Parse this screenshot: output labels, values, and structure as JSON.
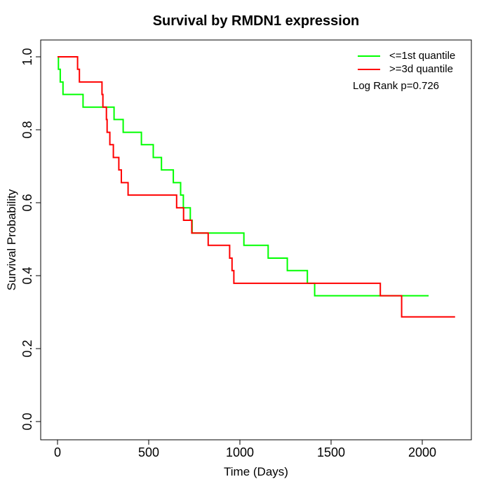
{
  "window": {
    "background": "#ffffff",
    "text_color": "#000000"
  },
  "chart_data": {
    "type": "line",
    "subtype": "kaplan-meier-step",
    "title": "Survival by RMDN1 expression",
    "xlabel": "Time (Days)",
    "ylabel": "Survival Probability",
    "xlim": [
      0,
      2200
    ],
    "ylim": [
      0.0,
      1.0
    ],
    "xticks": [
      0,
      500,
      1000,
      1500,
      2000
    ],
    "yticks": [
      "0.0",
      "0.2",
      "0.4",
      "0.6",
      "0.8",
      "1.0"
    ],
    "grid": false,
    "axis_color": "#000000",
    "legend_position": "top-right-inside",
    "annotation": "Log Rank p=0.726",
    "series": [
      {
        "name": "<=1st quantile",
        "color": "#00ff00",
        "start": [
          0,
          1.0
        ],
        "steps": [
          [
            5,
            0.966
          ],
          [
            15,
            0.931
          ],
          [
            30,
            0.897
          ],
          [
            140,
            0.862
          ],
          [
            310,
            0.828
          ],
          [
            360,
            0.793
          ],
          [
            460,
            0.759
          ],
          [
            525,
            0.724
          ],
          [
            570,
            0.69
          ],
          [
            635,
            0.655
          ],
          [
            675,
            0.621
          ],
          [
            690,
            0.586
          ],
          [
            728,
            0.552
          ],
          [
            738,
            0.517
          ],
          [
            1022,
            0.483
          ],
          [
            1155,
            0.448
          ],
          [
            1260,
            0.414
          ],
          [
            1370,
            0.379
          ],
          [
            1410,
            0.345
          ]
        ],
        "end_time": 2035
      },
      {
        "name": ">=3d quantile",
        "color": "#ff0000",
        "start": [
          0,
          1.0
        ],
        "steps": [
          [
            110,
            0.966
          ],
          [
            120,
            0.931
          ],
          [
            244,
            0.897
          ],
          [
            249,
            0.862
          ],
          [
            268,
            0.828
          ],
          [
            272,
            0.793
          ],
          [
            287,
            0.759
          ],
          [
            306,
            0.724
          ],
          [
            336,
            0.69
          ],
          [
            350,
            0.655
          ],
          [
            387,
            0.621
          ],
          [
            653,
            0.586
          ],
          [
            691,
            0.552
          ],
          [
            736,
            0.517
          ],
          [
            826,
            0.483
          ],
          [
            944,
            0.448
          ],
          [
            957,
            0.414
          ],
          [
            967,
            0.379
          ],
          [
            1770,
            0.345
          ],
          [
            1887,
            0.287
          ]
        ],
        "end_time": 2180
      }
    ]
  }
}
